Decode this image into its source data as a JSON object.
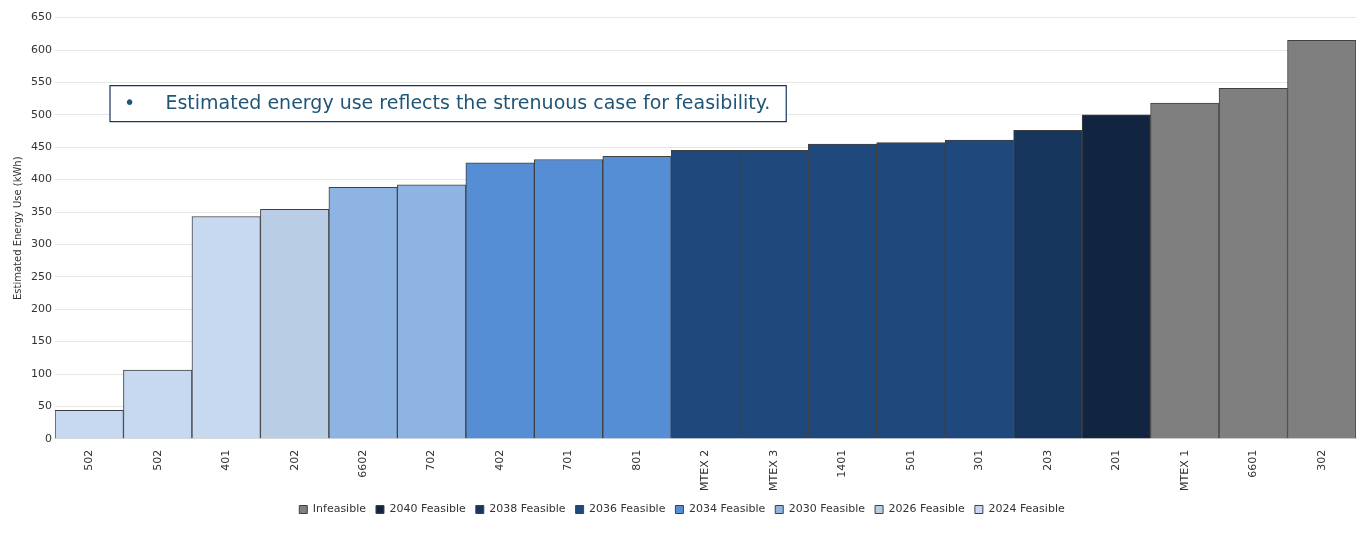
{
  "chart_data": {
    "type": "bar",
    "ylabel": "Estimated Energy Use (kWh)",
    "categories": [
      "502",
      "502",
      "401",
      "202",
      "6602",
      "702",
      "402",
      "701",
      "801",
      "MTEX 2",
      "MTEX 3",
      "1401",
      "501",
      "301",
      "203",
      "201",
      "MTEX 1",
      "6601",
      "302"
    ],
    "series": [
      {
        "name": "Infeasible",
        "color": "#7f7f7f",
        "values": [
          null,
          null,
          null,
          null,
          null,
          null,
          null,
          null,
          null,
          null,
          null,
          null,
          null,
          null,
          null,
          null,
          518,
          541,
          615
        ]
      },
      {
        "name": "2040 Feasible",
        "color": "#112540",
        "values": [
          null,
          null,
          null,
          null,
          null,
          null,
          null,
          null,
          null,
          null,
          null,
          null,
          null,
          null,
          null,
          500,
          null,
          null,
          null
        ]
      },
      {
        "name": "2038 Feasible",
        "color": "#17365d",
        "values": [
          null,
          null,
          null,
          null,
          null,
          null,
          null,
          null,
          null,
          null,
          null,
          null,
          null,
          null,
          476,
          null,
          null,
          null,
          null
        ]
      },
      {
        "name": "2036 Feasible",
        "color": "#1f497d",
        "values": [
          null,
          null,
          null,
          null,
          null,
          null,
          null,
          null,
          null,
          445,
          445,
          455,
          457,
          461,
          null,
          null,
          null,
          null,
          null
        ]
      },
      {
        "name": "2034 Feasible",
        "color": "#558ed5",
        "values": [
          null,
          null,
          null,
          null,
          null,
          null,
          426,
          431,
          436,
          null,
          null,
          null,
          null,
          null,
          null,
          null,
          null,
          null,
          null
        ]
      },
      {
        "name": "2030 Feasible",
        "color": "#8eb4e3",
        "values": [
          null,
          null,
          null,
          null,
          388,
          392,
          null,
          null,
          null,
          null,
          null,
          null,
          null,
          null,
          null,
          null,
          null,
          null,
          null
        ]
      },
      {
        "name": "2026 Feasible",
        "color": "#b9cde5",
        "values": [
          null,
          null,
          null,
          354,
          null,
          null,
          null,
          null,
          null,
          null,
          null,
          null,
          null,
          null,
          null,
          null,
          null,
          null,
          null
        ]
      },
      {
        "name": "2024 Feasible",
        "color": "#c6d9f1",
        "values": [
          44,
          106,
          343,
          null,
          null,
          null,
          null,
          null,
          null,
          null,
          null,
          null,
          null,
          null,
          null,
          null,
          null,
          null,
          null
        ]
      }
    ],
    "ylim": [
      0,
      650
    ],
    "yticks": [
      0,
      50,
      100,
      150,
      200,
      250,
      300,
      350,
      400,
      450,
      500,
      550,
      600,
      650
    ],
    "grid": "y",
    "legend": "bottom",
    "annotations": [
      "•     Estimated energy use reflects the strenuous case for feasibility."
    ]
  }
}
